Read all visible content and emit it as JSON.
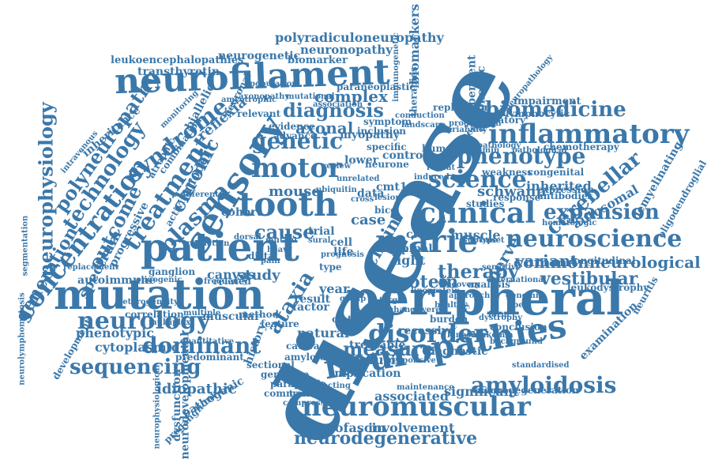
{
  "cloud": {
    "color": "#3b78aa",
    "background": "#ffffff",
    "words": [
      {
        "text": "disease",
        "orientation": "rotated"
      },
      {
        "text": "peripheral",
        "orientation": "horizontal"
      },
      {
        "text": "neuropathies",
        "orientation": "rotated"
      },
      {
        "text": "neurofilament",
        "orientation": "horizontal"
      },
      {
        "text": "mutation",
        "orientation": "horizontal"
      },
      {
        "text": "patient",
        "orientation": "horizontal"
      },
      {
        "text": "sensory",
        "orientation": "rotated"
      },
      {
        "text": "neuromuscular",
        "orientation": "horizontal"
      },
      {
        "text": "inflammatory",
        "orientation": "horizontal"
      },
      {
        "text": "neuroscience",
        "orientation": "horizontal"
      },
      {
        "text": "clinical",
        "orientation": "horizontal"
      },
      {
        "text": "marie",
        "orientation": "horizontal"
      },
      {
        "text": "tooth",
        "orientation": "horizontal"
      },
      {
        "text": "motor",
        "orientation": "horizontal"
      },
      {
        "text": "genetic",
        "orientation": "horizontal"
      },
      {
        "text": "biomedicine",
        "orientation": "horizontal"
      },
      {
        "text": "phenotype",
        "orientation": "horizontal"
      },
      {
        "text": "science",
        "orientation": "horizontal"
      },
      {
        "text": "neurology",
        "orientation": "horizontal"
      },
      {
        "text": "sequencing",
        "orientation": "horizontal"
      },
      {
        "text": "dominant",
        "orientation": "horizontal"
      },
      {
        "text": "concentration",
        "orientation": "rotated"
      },
      {
        "text": "treatment",
        "orientation": "rotated"
      },
      {
        "text": "syndrome",
        "orientation": "rotated"
      },
      {
        "text": "neurophysiology",
        "orientation": "vertical"
      },
      {
        "text": "technology",
        "orientation": "rotated"
      },
      {
        "text": "polyneuropathy",
        "orientation": "rotated"
      },
      {
        "text": "generation",
        "orientation": "rotated"
      },
      {
        "text": "amyloidosis",
        "orientation": "horizontal"
      },
      {
        "text": "neurodegenerative",
        "orientation": "horizontal"
      },
      {
        "text": "diagnosis",
        "orientation": "horizontal"
      },
      {
        "text": "disorder",
        "orientation": "horizontal"
      },
      {
        "text": "measure",
        "orientation": "horizontal"
      },
      {
        "text": "cerebellar",
        "orientation": "rotated"
      },
      {
        "text": "expansion",
        "orientation": "horizontal"
      },
      {
        "text": "commonneurological",
        "orientation": "horizontal"
      },
      {
        "text": "variant",
        "orientation": "horizontal"
      },
      {
        "text": "vestibular",
        "orientation": "horizontal"
      },
      {
        "text": "biomarkers",
        "orientation": "vertical"
      },
      {
        "text": "polyradiculoneuropathy",
        "orientation": "horizontal"
      },
      {
        "text": "neuronopathy",
        "orientation": "horizontal"
      },
      {
        "text": "neurogenetic",
        "orientation": "horizontal"
      },
      {
        "text": "biomarker",
        "orientation": "horizontal"
      },
      {
        "text": "leukoencephalopathies",
        "orientation": "horizontal"
      },
      {
        "text": "transthyretin",
        "orientation": "horizontal"
      },
      {
        "text": "complex",
        "orientation": "horizontal"
      },
      {
        "text": "axonal",
        "orientation": "horizontal"
      },
      {
        "text": "mouse",
        "orientation": "horizontal"
      },
      {
        "text": "cause",
        "orientation": "horizontal"
      },
      {
        "text": "protein",
        "orientation": "horizontal"
      },
      {
        "text": "therapy",
        "orientation": "horizontal"
      },
      {
        "text": "ataxia",
        "orientation": "rotated"
      },
      {
        "text": "plasma",
        "orientation": "rotated"
      },
      {
        "text": "chronic",
        "orientation": "rotated"
      },
      {
        "text": "outcome",
        "orientation": "rotated"
      },
      {
        "text": "spectrum",
        "orientation": "rotated"
      },
      {
        "text": "muscle",
        "orientation": "horizontal"
      },
      {
        "text": "schwann",
        "orientation": "horizontal"
      },
      {
        "text": "inherited",
        "orientation": "horizontal"
      },
      {
        "text": "autosomal",
        "orientation": "horizontal"
      },
      {
        "text": "neurofascin",
        "orientation": "horizontal"
      },
      {
        "text": "involvement",
        "orientation": "horizontal"
      },
      {
        "text": "associated",
        "orientation": "horizontal"
      },
      {
        "text": "significant",
        "orientation": "horizontal"
      },
      {
        "text": "mitofusin",
        "orientation": "horizontal"
      },
      {
        "text": "idiopathic",
        "orientation": "horizontal"
      },
      {
        "text": "cytoplasmic",
        "orientation": "horizontal"
      },
      {
        "text": "phenotypic",
        "orientation": "horizontal"
      },
      {
        "text": "correlation",
        "orientation": "horizontal"
      },
      {
        "text": "autoimmune",
        "orientation": "horizontal"
      },
      {
        "text": "study",
        "orientation": "horizontal"
      },
      {
        "text": "canvas",
        "orientation": "horizontal"
      },
      {
        "text": "result",
        "orientation": "horizontal"
      },
      {
        "text": "factor",
        "orientation": "horizontal"
      },
      {
        "text": "year",
        "orientation": "horizontal"
      },
      {
        "text": "natural",
        "orientation": "horizontal"
      },
      {
        "text": "light",
        "orientation": "horizontal"
      },
      {
        "text": "spinal",
        "orientation": "horizontal"
      },
      {
        "text": "nerve",
        "orientation": "rotated"
      },
      {
        "text": "chain",
        "orientation": "rotated"
      },
      {
        "text": "cmt1a",
        "orientation": "horizontal"
      },
      {
        "text": "case",
        "orientation": "horizontal"
      },
      {
        "text": "reflexia",
        "orientation": "rotated"
      },
      {
        "text": "myopathy",
        "orientation": "horizontal"
      },
      {
        "text": "impairment",
        "orientation": "horizontal"
      },
      {
        "text": "autonomic",
        "orientation": "vertical"
      },
      {
        "text": "lymphocytic",
        "orientation": "horizontal"
      },
      {
        "text": "antibodies",
        "orientation": "horizontal"
      },
      {
        "text": "demyelinating",
        "orientation": "rotated"
      },
      {
        "text": "oligodendroglial",
        "orientation": "rotated"
      },
      {
        "text": "leukodystrophy",
        "orientation": "horizontal"
      },
      {
        "text": "examination",
        "orientation": "rotated"
      },
      {
        "text": "dysfunction",
        "orientation": "vertical"
      },
      {
        "text": "pathogenic",
        "orientation": "rotated"
      },
      {
        "text": "preganglionic",
        "orientation": "rotated"
      },
      {
        "text": "implication",
        "orientation": "horizontal"
      },
      {
        "text": "diagnostic",
        "orientation": "horizontal"
      },
      {
        "text": "recessive",
        "orientation": "horizontal"
      },
      {
        "text": "treatable",
        "orientation": "horizontal"
      },
      {
        "text": "genotype",
        "orientation": "horizontal"
      },
      {
        "text": "paraplegia",
        "orientation": "horizontal"
      },
      {
        "text": "commonest",
        "orientation": "horizontal"
      },
      {
        "text": "sectional",
        "orientation": "horizontal"
      },
      {
        "text": "amyloid",
        "orientation": "horizontal"
      },
      {
        "text": "cmt2a",
        "orientation": "horizontal"
      },
      {
        "text": "cataract",
        "orientation": "horizontal"
      },
      {
        "text": "heterogeneity",
        "orientation": "horizontal"
      },
      {
        "text": "ganglion",
        "orientation": "horizontal"
      },
      {
        "text": "muscular",
        "orientation": "horizontal"
      },
      {
        "text": "method",
        "orientation": "horizontal"
      },
      {
        "text": "feature",
        "orientation": "horizontal"
      },
      {
        "text": "predominant",
        "orientation": "horizontal"
      },
      {
        "text": "history",
        "orientation": "rotated"
      },
      {
        "text": "related",
        "orientation": "horizontal"
      },
      {
        "text": "cohort",
        "orientation": "horizontal"
      },
      {
        "text": "progressive",
        "orientation": "rotated"
      },
      {
        "text": "model",
        "orientation": "rotated"
      },
      {
        "text": "inheritance",
        "orientation": "rotated"
      },
      {
        "text": "segmentation",
        "orientation": "vertical"
      },
      {
        "text": "replication",
        "orientation": "horizontal"
      },
      {
        "text": "modulatory",
        "orientation": "horizontal"
      },
      {
        "text": "pathology",
        "orientation": "horizontal"
      },
      {
        "text": "chemotherapy",
        "orientation": "horizontal"
      },
      {
        "text": "weakness",
        "orientation": "horizontal"
      },
      {
        "text": "congenital",
        "orientation": "horizontal"
      },
      {
        "text": "expression",
        "orientation": "horizontal"
      },
      {
        "text": "response",
        "orientation": "horizontal"
      },
      {
        "text": "studies",
        "orientation": "horizontal"
      },
      {
        "text": "analysis",
        "orientation": "horizontal"
      },
      {
        "text": "conclusion",
        "orientation": "horizontal"
      },
      {
        "text": "leukemia",
        "orientation": "horizontal"
      },
      {
        "text": "burden",
        "orientation": "horizontal"
      },
      {
        "text": "neurodegeneration",
        "orientation": "horizontal"
      },
      {
        "text": "cidp",
        "orientation": "horizontal"
      },
      {
        "text": "cell",
        "orientation": "horizontal"
      },
      {
        "text": "life",
        "orientation": "horizontal"
      },
      {
        "text": "trial",
        "orientation": "horizontal"
      },
      {
        "text": "distal",
        "orientation": "horizontal"
      },
      {
        "text": "data",
        "orientation": "horizontal"
      },
      {
        "text": "control",
        "orientation": "horizontal"
      },
      {
        "text": "specific",
        "orientation": "horizontal"
      },
      {
        "text": "human",
        "orientation": "horizontal"
      },
      {
        "text": "lower",
        "orientation": "horizontal"
      },
      {
        "text": "neurone",
        "orientation": "horizontal"
      },
      {
        "text": "inclusion",
        "orientation": "horizontal"
      },
      {
        "text": "evidence",
        "orientation": "horizontal"
      },
      {
        "text": "advance",
        "orientation": "horizontal"
      },
      {
        "text": "mutational",
        "orientation": "horizontal"
      },
      {
        "text": "paraneoplastic",
        "orientation": "horizontal"
      },
      {
        "text": "dependent",
        "orientation": "vertical"
      },
      {
        "text": "neuropathology",
        "orientation": "rotated"
      },
      {
        "text": "hematologic",
        "orientation": "horizontal"
      },
      {
        "text": "longitudinal",
        "orientation": "horizontal"
      },
      {
        "text": "biallelic",
        "orientation": "rotated"
      },
      {
        "text": "amyotrophic",
        "orientation": "horizontal"
      },
      {
        "text": "maintenance",
        "orientation": "horizontal"
      },
      {
        "text": "compressive",
        "orientation": "horizontal"
      },
      {
        "text": "transport",
        "orientation": "horizontal"
      },
      {
        "text": "change",
        "orientation": "horizontal"
      },
      {
        "text": "severe",
        "orientation": "horizontal"
      },
      {
        "text": "healthy",
        "orientation": "horizontal"
      },
      {
        "text": "target",
        "orientation": "horizontal"
      },
      {
        "text": "quantitative",
        "orientation": "horizontal"
      },
      {
        "text": "multiplex",
        "orientation": "horizontal"
      },
      {
        "text": "neurodevelopmental",
        "orientation": "vertical"
      },
      {
        "text": "neurophysiological",
        "orientation": "vertical"
      },
      {
        "text": "neurolymphomatosis",
        "orientation": "vertical"
      },
      {
        "text": "development",
        "orientation": "rotated"
      },
      {
        "text": "standardised",
        "orientation": "horizontal"
      },
      {
        "text": "neuritis",
        "orientation": "rotated"
      },
      {
        "text": "conduction",
        "orientation": "horizontal"
      },
      {
        "text": "landscape",
        "orientation": "horizontal"
      },
      {
        "text": "variability",
        "orientation": "horizontal"
      },
      {
        "text": "progression",
        "orientation": "horizontal"
      },
      {
        "text": "immunogenetic",
        "orientation": "vertical"
      },
      {
        "text": "symptom",
        "orientation": "horizontal"
      },
      {
        "text": "review",
        "orientation": "horizontal"
      },
      {
        "text": "repeat",
        "orientation": "horizontal"
      },
      {
        "text": "bicd",
        "orientation": "horizontal"
      },
      {
        "text": "lesion",
        "orientation": "horizontal"
      },
      {
        "text": "sural",
        "orientation": "horizontal"
      },
      {
        "text": "cross",
        "orientation": "horizontal"
      },
      {
        "text": "type",
        "orientation": "horizontal"
      },
      {
        "text": "group",
        "orientation": "horizontal"
      },
      {
        "text": "approach",
        "orientation": "horizontal"
      },
      {
        "text": "sensitive",
        "orientation": "horizontal"
      },
      {
        "text": "international",
        "orientation": "horizontal"
      },
      {
        "text": "responsive",
        "orientation": "horizontal"
      },
      {
        "text": "affecting",
        "orientation": "horizontal"
      },
      {
        "text": "lipoprotein",
        "orientation": "horizontal"
      },
      {
        "text": "background",
        "orientation": "horizontal"
      },
      {
        "text": "kinesin",
        "orientation": "horizontal"
      },
      {
        "text": "dorsal",
        "orientation": "horizontal"
      },
      {
        "text": "mutant",
        "orientation": "horizontal"
      },
      {
        "text": "heavy",
        "orientation": "horizontal"
      },
      {
        "text": "atrophic",
        "orientation": "rotated"
      },
      {
        "text": "combination",
        "orientation": "rotated"
      },
      {
        "text": "replacement",
        "orientation": "horizontal"
      },
      {
        "text": "intravenous",
        "orientation": "rotated"
      },
      {
        "text": "monitoring",
        "orientation": "rotated"
      },
      {
        "text": "oligogenic",
        "orientation": "horizontal"
      },
      {
        "text": "population",
        "orientation": "horizontal"
      },
      {
        "text": "activity",
        "orientation": "rotated"
      },
      {
        "text": "different",
        "orientation": "horizontal"
      },
      {
        "text": "relevant",
        "orientation": "horizontal"
      },
      {
        "text": "ubiquitin",
        "orientation": "horizontal"
      },
      {
        "text": "association",
        "orientation": "horizontal"
      },
      {
        "text": "therapies",
        "orientation": "vertical"
      },
      {
        "text": "movement",
        "orientation": "rotated"
      },
      {
        "text": "dynamin",
        "orientation": "horizontal"
      },
      {
        "text": "pathological",
        "orientation": "horizontal"
      },
      {
        "text": "unrelated",
        "orientation": "horizontal"
      },
      {
        "text": "axonopathy",
        "orientation": "horizontal"
      },
      {
        "text": "induced",
        "orientation": "horizontal"
      },
      {
        "text": "reduction",
        "orientation": "horizontal"
      },
      {
        "text": "subtype",
        "orientation": "horizontal"
      },
      {
        "text": "onset",
        "orientation": "horizontal"
      },
      {
        "text": "frequency",
        "orientation": "horizontal"
      },
      {
        "text": "pain",
        "orientation": "horizontal"
      },
      {
        "text": "neuronal",
        "orientation": "rotated"
      },
      {
        "text": "prognosis",
        "orientation": "horizontal"
      },
      {
        "text": "severity",
        "orientation": "rotated"
      },
      {
        "text": "multiple",
        "orientation": "horizontal"
      },
      {
        "text": "dystrophy",
        "orientation": "horizontal"
      },
      {
        "text": "recovery",
        "orientation": "horizontal"
      },
      {
        "text": "genomic",
        "orientation": "horizontal"
      },
      {
        "text": "fiber",
        "orientation": "horizontal"
      },
      {
        "text": "age",
        "orientation": "horizontal"
      },
      {
        "text": "form",
        "orientation": "horizontal"
      }
    ]
  }
}
